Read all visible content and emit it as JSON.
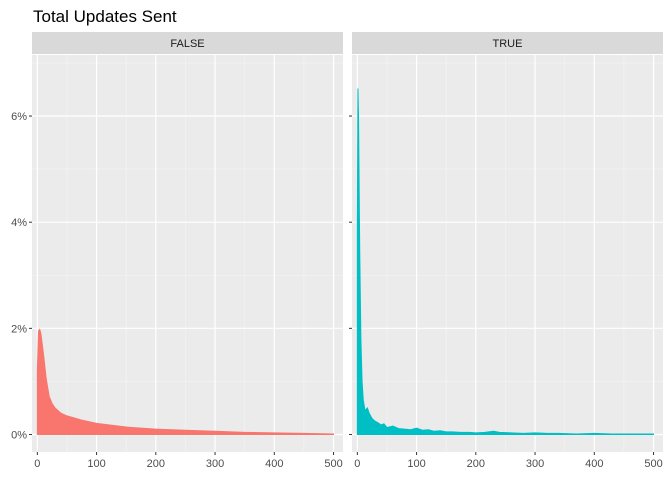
{
  "chart_data": {
    "type": "area",
    "title": "Total Updates Sent",
    "xlabel": "",
    "ylabel": "",
    "xlim": [
      -9,
      516
    ],
    "ylim": [
      -0.0033,
      0.0715
    ],
    "x_ticks": [
      0,
      100,
      200,
      300,
      400,
      500
    ],
    "y_ticks": [
      0,
      0.02,
      0.04,
      0.06
    ],
    "y_tick_labels": [
      "0%",
      "2%",
      "4%",
      "6%"
    ],
    "grid": true,
    "legend": "none",
    "facets": [
      {
        "label": "FALSE",
        "color": "#F8766D",
        "points": [
          [
            0,
            0.012
          ],
          [
            2,
            0.0195
          ],
          [
            4,
            0.0198
          ],
          [
            6,
            0.019
          ],
          [
            10,
            0.0155
          ],
          [
            15,
            0.0105
          ],
          [
            20,
            0.0072
          ],
          [
            25,
            0.0058
          ],
          [
            30,
            0.005
          ],
          [
            40,
            0.004
          ],
          [
            50,
            0.0035
          ],
          [
            75,
            0.0027
          ],
          [
            100,
            0.0021
          ],
          [
            150,
            0.0014
          ],
          [
            200,
            0.001
          ],
          [
            250,
            0.0008
          ],
          [
            300,
            0.0006
          ],
          [
            350,
            0.0004
          ],
          [
            400,
            0.0003
          ],
          [
            450,
            0.0002
          ],
          [
            500,
            0.0001
          ]
        ]
      },
      {
        "label": "TRUE",
        "color": "#00BFC4",
        "points": [
          [
            0,
            0.04
          ],
          [
            1,
            0.0652
          ],
          [
            2,
            0.06
          ],
          [
            4,
            0.035
          ],
          [
            6,
            0.018
          ],
          [
            8,
            0.01
          ],
          [
            10,
            0.0065
          ],
          [
            13,
            0.0045
          ],
          [
            17,
            0.005
          ],
          [
            20,
            0.004
          ],
          [
            25,
            0.003
          ],
          [
            30,
            0.0025
          ],
          [
            35,
            0.0022
          ],
          [
            40,
            0.0018
          ],
          [
            45,
            0.002
          ],
          [
            50,
            0.0013
          ],
          [
            60,
            0.0016
          ],
          [
            70,
            0.0011
          ],
          [
            80,
            0.001
          ],
          [
            90,
            0.0009
          ],
          [
            100,
            0.0012
          ],
          [
            110,
            0.0008
          ],
          [
            120,
            0.0009
          ],
          [
            130,
            0.0006
          ],
          [
            140,
            0.0007
          ],
          [
            150,
            0.0005
          ],
          [
            160,
            0.0005
          ],
          [
            175,
            0.0004
          ],
          [
            190,
            0.0004
          ],
          [
            200,
            0.0003
          ],
          [
            215,
            0.0004
          ],
          [
            230,
            0.0006
          ],
          [
            240,
            0.0004
          ],
          [
            260,
            0.0003
          ],
          [
            280,
            0.0002
          ],
          [
            300,
            0.0003
          ],
          [
            320,
            0.0002
          ],
          [
            340,
            0.0002
          ],
          [
            370,
            0.0001
          ],
          [
            400,
            0.0002
          ],
          [
            430,
            0.0001
          ],
          [
            460,
            0.0001
          ],
          [
            500,
            0.0001
          ]
        ]
      }
    ]
  }
}
